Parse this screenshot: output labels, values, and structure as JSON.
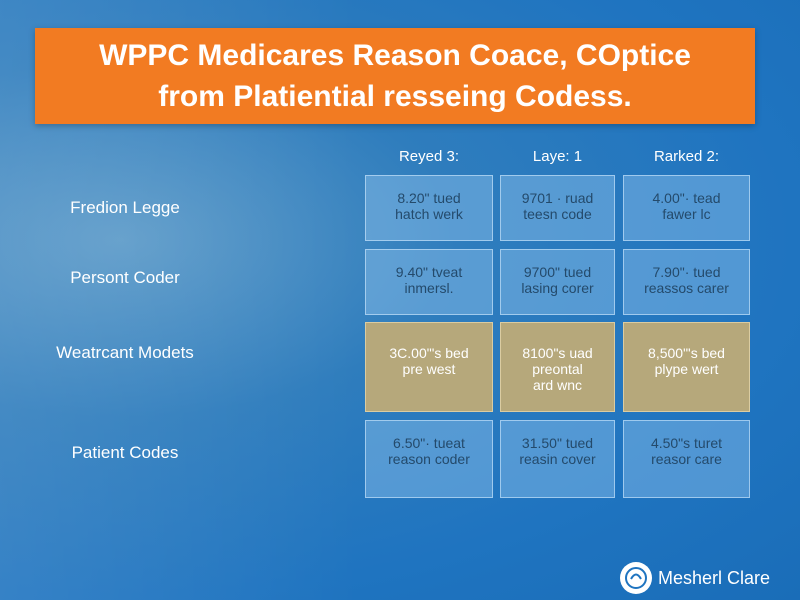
{
  "title": [
    "WPPC Medicares Reason Coace, COptice",
    "from Platiential resseing Codess."
  ],
  "table": {
    "columns": [
      "Reyed 3:",
      "Laye: 1",
      "Rarked 2:"
    ],
    "rows": [
      {
        "label": "Fredion Legge",
        "cells": [
          [
            "8.20\" tued",
            "hatch werk"
          ],
          [
            "9701 · ruad",
            "teesn code"
          ],
          [
            "4.00\"· tead",
            "fawer lc"
          ]
        ]
      },
      {
        "label": "Persont Coder",
        "cells": [
          [
            "9.40\" tveat",
            "inmersl."
          ],
          [
            "9700\" tued",
            "lasing corer"
          ],
          [
            "7.90\"· tued",
            "reassos carer"
          ]
        ]
      },
      {
        "label": "Weatrcant Modets",
        "cells": [
          [
            "3C.00\"'s bed",
            "pre west"
          ],
          [
            "8100\"s uad",
            "preontal",
            "ard wnc"
          ],
          [
            "8,500\"'s bed",
            "plype wert"
          ]
        ]
      },
      {
        "label": "Patient Codes",
        "cells": [
          [
            "6.50\"· tueat",
            "reason coder"
          ],
          [
            "31.50\" tued",
            "reasin cover"
          ],
          [
            "4.50\"s turet",
            "reasor care"
          ]
        ]
      }
    ]
  },
  "logo": "Mesherl Clare"
}
